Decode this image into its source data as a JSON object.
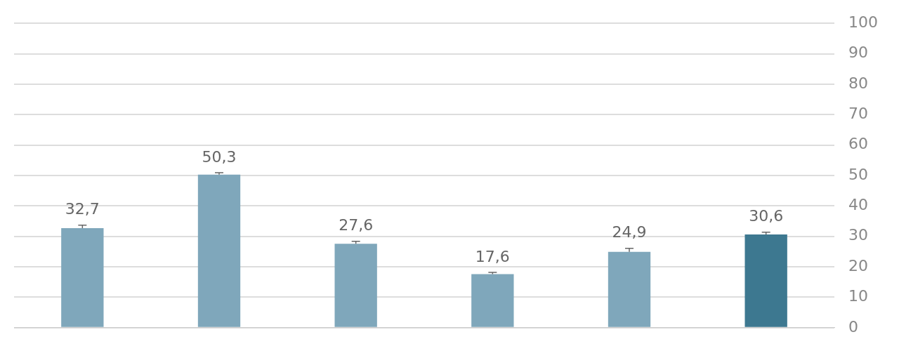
{
  "chart_data": {
    "type": "bar",
    "categories": [
      null,
      null,
      null,
      null,
      null,
      null
    ],
    "values": [
      32.7,
      50.3,
      27.6,
      17.6,
      24.9,
      30.6
    ],
    "colors": [
      "#7fa7bb",
      "#7fa7bb",
      "#7fa7bb",
      "#7fa7bb",
      "#7fa7bb",
      "#3d7890"
    ],
    "errors": [
      [
        32.7,
        33.7
      ],
      [
        50.3,
        50.9
      ],
      [
        27.6,
        28.4
      ],
      [
        17.6,
        18.2
      ],
      [
        24.9,
        26.1
      ],
      [
        30.6,
        31.4
      ]
    ],
    "value_labels": [
      "32,7",
      "50,3",
      "27,6",
      "17,6",
      "24,9",
      "30,6"
    ],
    "ylim": [
      0,
      100
    ],
    "yticks": [
      0,
      10,
      20,
      30,
      40,
      50,
      60,
      70,
      80,
      90,
      100
    ],
    "grid": "y",
    "legend": false
  }
}
